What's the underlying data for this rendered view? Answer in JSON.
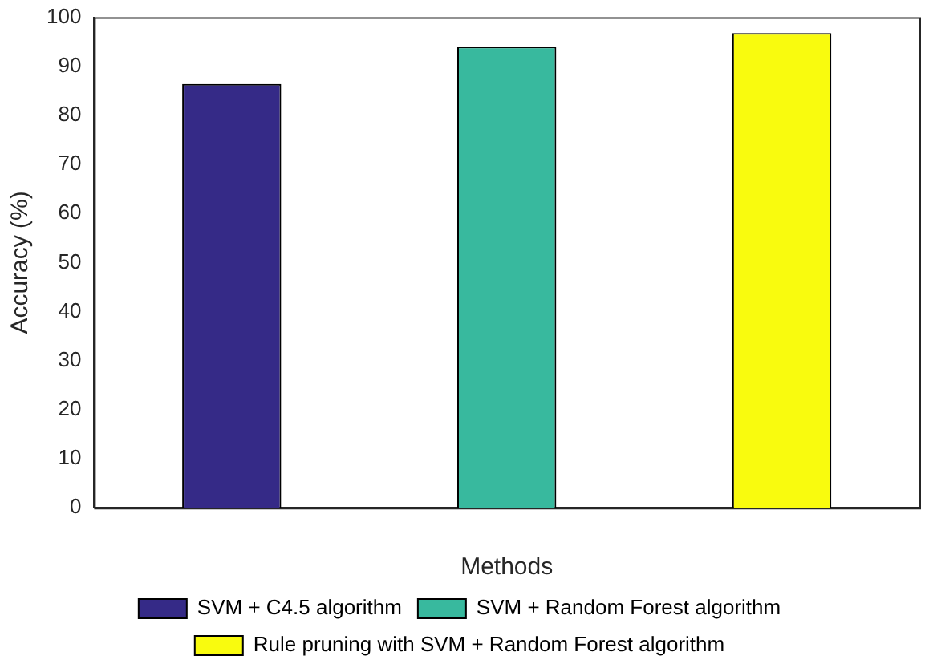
{
  "chart_data": {
    "type": "bar",
    "xlabel": "Methods",
    "ylabel": "Accuracy (%)",
    "categories": [
      null
    ],
    "series": [
      {
        "name": "SVM + C4.5 algorithm",
        "color": "#352a87",
        "values": [
          86.4
        ]
      },
      {
        "name": "SVM + Random Forest algorithm",
        "color": "#38b99e",
        "values": [
          94
        ]
      },
      {
        "name": "Rule pruning with SVM + Random Forest algorithm",
        "color": "#f9fb0e",
        "values": [
          96.8
        ]
      }
    ],
    "ylim": [
      0,
      100
    ],
    "yticks": [
      0,
      10,
      20,
      30,
      40,
      50,
      60,
      70,
      80,
      90,
      100
    ],
    "grid": false,
    "legend": "bottom"
  }
}
